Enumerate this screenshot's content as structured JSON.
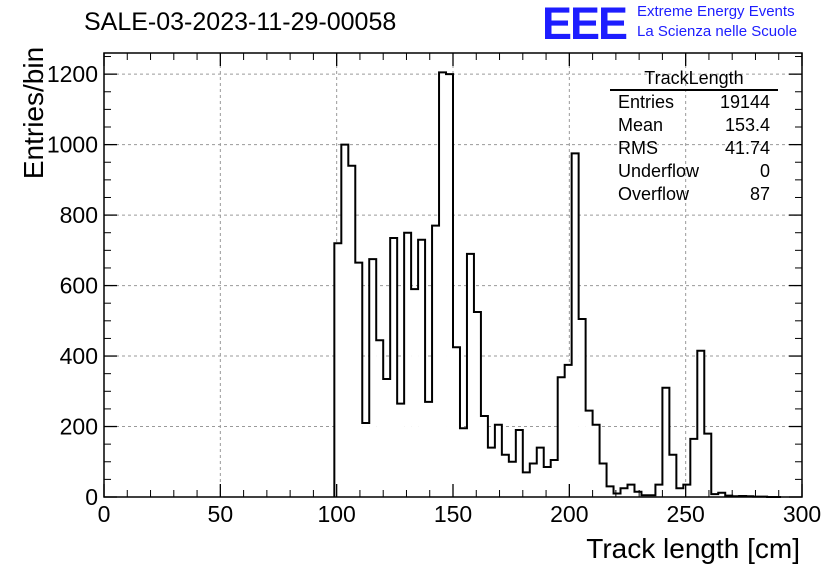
{
  "run_title": "SALE-03-2023-11-29-00058",
  "logo": {
    "mark": "EEE",
    "line1": "Extreme Energy Events",
    "line2": "La Scienza nelle Scuole",
    "color": "#1d1dff"
  },
  "stats": {
    "title": "TrackLength",
    "rows": [
      {
        "label": "Entries",
        "value": "19144"
      },
      {
        "label": "Mean",
        "value": "153.4"
      },
      {
        "label": "RMS",
        "value": "41.74"
      },
      {
        "label": "Underflow",
        "value": "0"
      },
      {
        "label": "Overflow",
        "value": "87"
      }
    ]
  },
  "chart_data": {
    "type": "bar",
    "style": "step-histogram",
    "xlabel": "Track length [cm]",
    "ylabel": "Entries/bin",
    "xlim": [
      0,
      300
    ],
    "ylim": [
      0,
      1260
    ],
    "xticks": [
      0,
      50,
      100,
      150,
      200,
      250,
      300
    ],
    "yticks": [
      0,
      200,
      400,
      600,
      800,
      1000,
      1200
    ],
    "grid": true,
    "bin_width": 3,
    "bins_start": [
      99,
      102,
      105,
      108,
      111,
      114,
      117,
      120,
      123,
      126,
      129,
      132,
      135,
      138,
      141,
      144,
      147,
      150,
      153,
      156,
      159,
      162,
      165,
      168,
      171,
      174,
      177,
      180,
      183,
      186,
      189,
      192,
      195,
      198,
      201,
      204,
      207,
      210,
      213,
      216,
      219,
      222,
      225,
      228,
      231,
      234,
      237,
      240,
      243,
      246,
      249,
      252,
      255,
      258,
      261,
      264,
      267,
      270,
      273,
      276,
      279,
      282,
      285,
      288
    ],
    "values": [
      720,
      1000,
      940,
      665,
      210,
      675,
      445,
      335,
      735,
      265,
      750,
      590,
      730,
      270,
      770,
      1205,
      1200,
      425,
      195,
      690,
      525,
      230,
      140,
      205,
      120,
      100,
      190,
      70,
      95,
      140,
      85,
      105,
      340,
      375,
      975,
      505,
      245,
      205,
      95,
      30,
      10,
      25,
      35,
      15,
      5,
      5,
      35,
      310,
      120,
      25,
      35,
      165,
      415,
      180,
      8,
      12,
      4,
      2,
      3,
      2,
      1,
      1,
      0,
      0
    ]
  }
}
